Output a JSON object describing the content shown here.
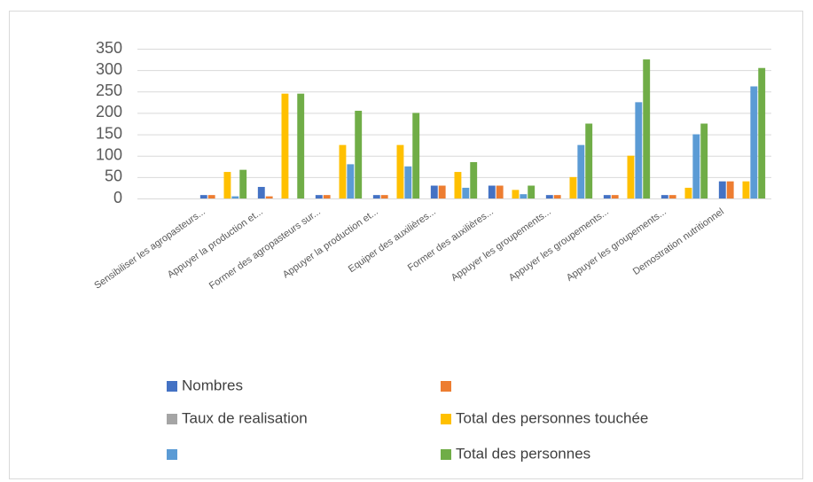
{
  "chart_data": {
    "type": "bar",
    "categories": [
      null,
      "Sensibiliser les agropasteurs...",
      "Appuyer la production et...",
      "Former des agropasteurs sur...",
      "Appuyer la production et...",
      "Equiper des auxilières...",
      "Former des auxilières...",
      "Appuyer les groupements...",
      "Appuyer les groupements...",
      "Appuyer les groupements...",
      "Demostration nutritionnel"
    ],
    "series": [
      {
        "name": "Nombres",
        "color": "#4472c4",
        "values": [
          0,
          8,
          27,
          8,
          8,
          30,
          30,
          8,
          8,
          8,
          40
        ]
      },
      {
        "color": "#ed7d31",
        "values": [
          0,
          8,
          5,
          8,
          8,
          30,
          30,
          8,
          8,
          8,
          40
        ]
      },
      {
        "name": "Taux de realisation",
        "color": "#a5a5a5",
        "values": [
          0,
          0,
          0,
          0,
          0,
          0,
          0,
          0,
          0,
          0,
          0
        ]
      },
      {
        "name": "Total des personnes touchée",
        "color": "#ffc000",
        "values": [
          0,
          62,
          245,
          125,
          125,
          62,
          20,
          50,
          100,
          25,
          40
        ]
      },
      {
        "color": "#5b9bd5",
        "values": [
          0,
          5,
          0,
          80,
          75,
          25,
          10,
          125,
          225,
          150,
          262
        ]
      },
      {
        "name": "Total des personnes",
        "color": "#70ad47",
        "values": [
          0,
          67,
          245,
          205,
          200,
          85,
          30,
          175,
          325,
          175,
          305
        ]
      }
    ],
    "ylim": [
      0,
      350
    ],
    "yticks": [
      0,
      50,
      100,
      150,
      200,
      250,
      300,
      350
    ],
    "grid": true
  }
}
